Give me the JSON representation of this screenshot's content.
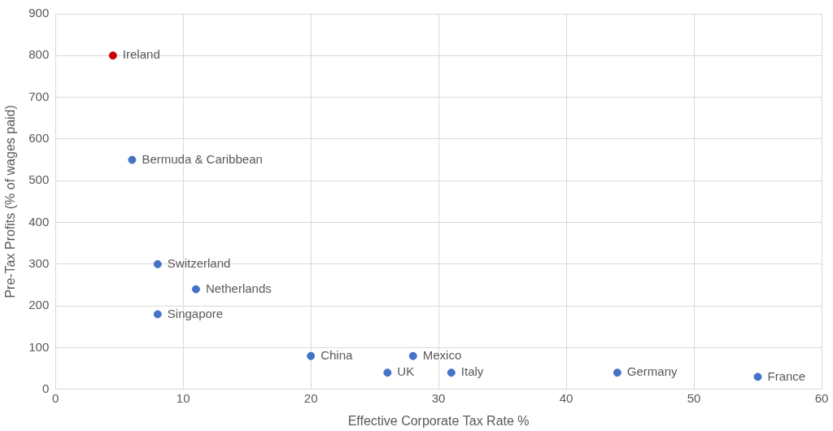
{
  "chart_data": {
    "type": "scatter",
    "x_label": "Effective Corporate Tax Rate %",
    "y_label": "Pre-Tax Profits (% of wages paid)",
    "point_labels": [
      "Ireland",
      "Bermuda & Caribbean",
      "Switzerland",
      "Netherlands",
      "Singapore",
      "China",
      "UK",
      "Mexico",
      "Italy",
      "Germany",
      "France"
    ],
    "x": [
      4.5,
      6,
      8,
      11,
      8,
      20,
      26,
      28,
      31,
      44,
      55
    ],
    "values": [
      800,
      550,
      300,
      240,
      180,
      80,
      40,
      80,
      40,
      40,
      30
    ],
    "colors": [
      "#cc0000",
      "#4472c4",
      "#4472c4",
      "#4472c4",
      "#4472c4",
      "#4472c4",
      "#4472c4",
      "#4472c4",
      "#4472c4",
      "#4472c4",
      "#4472c4"
    ],
    "xlim": [
      0,
      60
    ],
    "xticks": [
      0,
      10,
      20,
      30,
      40,
      50,
      60
    ],
    "ylim": [
      0,
      900
    ],
    "yticks": [
      0,
      100,
      200,
      300,
      400,
      500,
      600,
      700,
      800,
      900
    ],
    "grid": true
  }
}
